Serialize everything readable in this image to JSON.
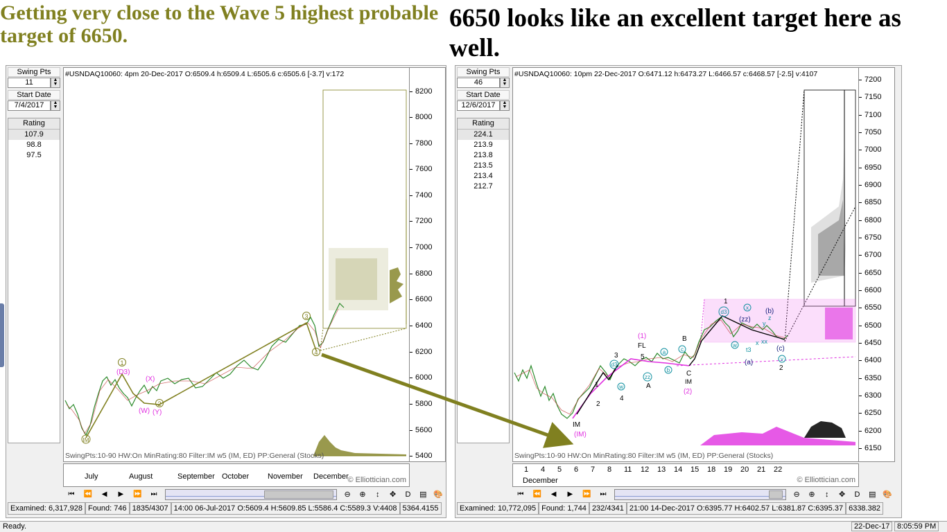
{
  "headlines": {
    "left": "Getting very close to the Wave 5 highest probable target of 6650.",
    "right": "6650 looks like an excellent target here as well."
  },
  "colors": {
    "olive": "#808020",
    "magenta": "#e030e0",
    "black": "#000000",
    "cyan": "#1090a0"
  },
  "left_panel": {
    "swing_pts_label": "Swing Pts",
    "swing_pts_value": "11",
    "start_date_label": "Start Date",
    "start_date_value": "7/4/2017",
    "rating_label": "Rating",
    "ratings": [
      "107.9",
      "98.8",
      "97.5"
    ],
    "info": "#USNDAQ10060:  4pm 20-Dec-2017  O:6509.4 h:6509.4 L:6505.6 c:6505.6 [-3.7] v:172",
    "footer": "SwingPts:10-90 HW:On   MinRating:80   Filter:IM w5 (IM, ED)   PP:General (Stocks)",
    "y_ticks": [
      "8200",
      "8000",
      "7800",
      "7600",
      "7400",
      "7200",
      "7000",
      "6800",
      "6600",
      "6400",
      "6200",
      "6000",
      "5800",
      "5600",
      "5400"
    ],
    "x_labels": [
      "July",
      "August",
      "September",
      "October",
      "November",
      "December"
    ],
    "copyright": "© Elliottician.com",
    "status": [
      "Examined: 6,317,928",
      "Found: 746",
      "1835/4307",
      "14:00 06-Jul-2017  O:5609.4 H:5609.85 L:5586.4 C:5589.3 V:4408",
      "5364.4155"
    ]
  },
  "right_panel": {
    "swing_pts_label": "Swing Pts",
    "swing_pts_value": "46",
    "start_date_label": "Start Date",
    "start_date_value": "12/6/2017",
    "rating_label": "Rating",
    "ratings": [
      "224.1",
      "213.9",
      "213.8",
      "213.5",
      "213.4",
      "212.7"
    ],
    "info": "#USNDAQ10060:  10pm 22-Dec-2017  O:6471.12 h:6473.27 L:6466.57 c:6468.57 [-2.5] v:4107",
    "footer": "SwingPts:10-90 HW:On   MinRating:80   Filter:IM w5 (IM, ED)   PP:General (Stocks)",
    "y_ticks": [
      "7200",
      "7150",
      "7100",
      "7050",
      "7000",
      "6950",
      "6900",
      "6850",
      "6800",
      "6750",
      "6700",
      "6650",
      "6600",
      "6550",
      "6500",
      "6450",
      "6400",
      "6350",
      "6300",
      "6250",
      "6200",
      "6150"
    ],
    "x_days": [
      "1",
      "4",
      "5",
      "6",
      "7",
      "8",
      "11",
      "12",
      "13",
      "14",
      "15",
      "18",
      "19",
      "20",
      "21",
      "22"
    ],
    "x_month": "December",
    "copyright": "© Elliottician.com",
    "status": [
      "Examined: 10,772,095",
      "Found: 1,744",
      "232/4341",
      "21:00 14-Dec-2017  O:6395.77 H:6402.57 L:6381.87 C:6395.37",
      "6338.382"
    ]
  },
  "waves_left": {
    "w1": "1",
    "d3": "(D3)",
    "x": "(X)",
    "w": "(W)",
    "y": "(Y)",
    "w2": "2",
    "w3": "3",
    "w4": "4",
    "im": "IM"
  },
  "waves_right": {
    "im": "IM",
    "im_paren": "(IM)",
    "n1": "1",
    "n2": "2",
    "n3": "3",
    "n4": "4",
    "n5": "5",
    "fl": "FL",
    "one_paren": "(1)",
    "d3": "d3",
    "w": "w",
    "zz": "zz",
    "a_cap": "A",
    "a": "a",
    "b": "b",
    "c": "c",
    "b_cap": "B",
    "c_cap": "C",
    "im2": "IM",
    "two_paren": "(2)",
    "top1": "1",
    "d3b": "d3",
    "xcirc": "x",
    "zz_paren": "(zz)",
    "b_paren": "(b)",
    "y": "y",
    "z": "z",
    "w2": "w",
    "t3": "t3",
    "x1": "x",
    "xx": "xx",
    "c_paren": "(c)",
    "a_paren": "(a)",
    "v": "v",
    "two": "2"
  },
  "nav": [
    "⏮",
    "⏪",
    "◀",
    "▶",
    "⏩",
    "⏭"
  ],
  "tools": [
    "⊖",
    "⊕",
    "↕",
    "✥",
    "D",
    "▤",
    "🎨"
  ],
  "bottom": {
    "ready": "Ready.",
    "date": "22-Dec-17",
    "time": "8:05:59 PM"
  }
}
